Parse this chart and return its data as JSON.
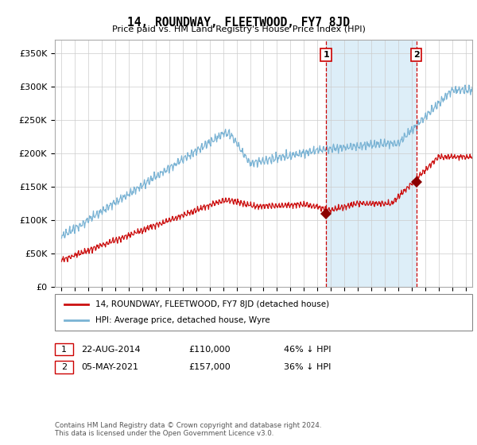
{
  "title": "14, ROUNDWAY, FLEETWOOD, FY7 8JD",
  "subtitle": "Price paid vs. HM Land Registry's House Price Index (HPI)",
  "ylabel_ticks": [
    "£0",
    "£50K",
    "£100K",
    "£150K",
    "£200K",
    "£250K",
    "£300K",
    "£350K"
  ],
  "ytick_values": [
    0,
    50000,
    100000,
    150000,
    200000,
    250000,
    300000,
    350000
  ],
  "ylim": [
    0,
    370000
  ],
  "xlim_start": 1994.5,
  "xlim_end": 2025.5,
  "hpi_color": "#7ab3d4",
  "price_color": "#cc1111",
  "vline_color": "#cc0000",
  "shade_color": "#ddeef8",
  "marker1_x": 2014.64,
  "marker1_y": 110000,
  "marker2_x": 2021.35,
  "marker2_y": 157000,
  "legend_property_label": "14, ROUNDWAY, FLEETWOOD, FY7 8JD (detached house)",
  "legend_hpi_label": "HPI: Average price, detached house, Wyre",
  "table_row1": [
    "1",
    "22-AUG-2014",
    "£110,000",
    "46% ↓ HPI"
  ],
  "table_row2": [
    "2",
    "05-MAY-2021",
    "£157,000",
    "36% ↓ HPI"
  ],
  "footer": "Contains HM Land Registry data © Crown copyright and database right 2024.\nThis data is licensed under the Open Government Licence v3.0."
}
